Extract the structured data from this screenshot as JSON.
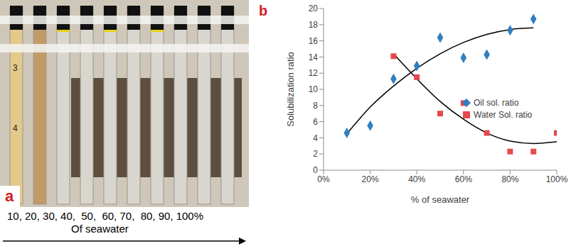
{
  "photo": {
    "label": "a",
    "tube_marks": [
      "3",
      "4"
    ],
    "caption": "10, 20, 30, 40,  50,  60, 70,  80, 90, 100%",
    "caption_axis": "Of seawater"
  },
  "chart_data": {
    "type": "scatter",
    "panel_label": "b",
    "x_label": "% of seawater",
    "y_label": "Solubilization ratio",
    "xlim": [
      0,
      100
    ],
    "xticks": [
      {
        "value": 0,
        "label": "0%"
      },
      {
        "value": 20,
        "label": "20%"
      },
      {
        "value": 40,
        "label": "40%"
      },
      {
        "value": 60,
        "label": "60%"
      },
      {
        "value": 80,
        "label": "80%"
      },
      {
        "value": 100,
        "label": "100%"
      }
    ],
    "ylim": [
      0,
      20
    ],
    "yticks": [
      0,
      2,
      4,
      6,
      8,
      10,
      12,
      14,
      16,
      18,
      20
    ],
    "grid": false,
    "legend": "right",
    "series": [
      {
        "type": "line",
        "color": "#000000",
        "marker": "none",
        "line_style": "solid",
        "x": [
          10,
          20,
          30,
          40,
          50,
          60,
          70,
          80,
          90
        ],
        "values": [
          4.5,
          7.8,
          10.4,
          12.6,
          14.4,
          15.8,
          16.8,
          17.4,
          17.6
        ]
      },
      {
        "type": "line",
        "color": "#000000",
        "marker": "none",
        "line_style": "solid",
        "x": [
          30,
          40,
          50,
          60,
          70,
          80,
          90,
          100
        ],
        "values": [
          14.4,
          11.3,
          8.5,
          6.3,
          4.6,
          3.6,
          3.3,
          3.5
        ]
      },
      {
        "type": "scatter",
        "name": "Oil sol. ratio",
        "color": "#2f7fc1",
        "marker": "diamond",
        "x": [
          10,
          20,
          30,
          40,
          50,
          60,
          70,
          80,
          90
        ],
        "values": [
          4.6,
          5.5,
          11.3,
          12.9,
          16.4,
          13.9,
          14.3,
          17.3,
          18.7
        ]
      },
      {
        "type": "scatter",
        "name": "Water Sol. ratio",
        "color": "#e5484d",
        "marker": "square",
        "x": [
          30,
          40,
          50,
          60,
          70,
          80,
          90,
          100
        ],
        "values": [
          14.1,
          11.5,
          7.0,
          8.3,
          4.6,
          2.3,
          2.3,
          4.6
        ]
      }
    ]
  }
}
